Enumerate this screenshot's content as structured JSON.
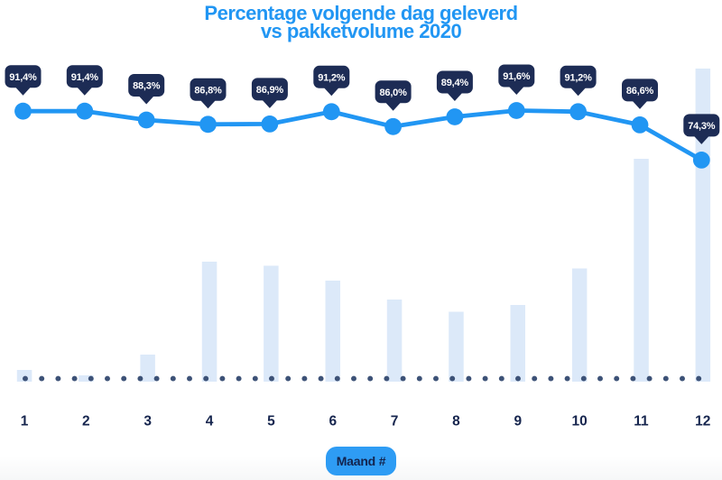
{
  "title": {
    "line1": "Percentage volgende dag geleverd",
    "line2": "vs pakketvolume 2020"
  },
  "x_axis": {
    "title": "Maand #",
    "tick_labels": [
      "1",
      "2",
      "3",
      "4",
      "5",
      "6",
      "7",
      "8",
      "9",
      "10",
      "11",
      "12"
    ]
  },
  "chart_data": {
    "type": "combo",
    "title": "Percentage volgende dag geleverd vs pakketvolume 2020",
    "xlabel": "Maand #",
    "ylabel": "",
    "legend": false,
    "grid": false,
    "categories": [
      1,
      2,
      3,
      4,
      5,
      6,
      7,
      8,
      9,
      10,
      11,
      12
    ],
    "series": [
      {
        "name": "Percentage volgende dag geleverd",
        "type": "line",
        "unit": "%",
        "values": [
          91.4,
          91.4,
          88.3,
          86.8,
          86.9,
          91.2,
          86.0,
          89.4,
          91.6,
          91.2,
          86.6,
          74.3
        ],
        "labels": [
          "91,4%",
          "91,4%",
          "88,3%",
          "86,8%",
          "86,9%",
          "91,2%",
          "86,0%",
          "89,4%",
          "91,6%",
          "91,2%",
          "86,6%",
          "74,3%"
        ]
      },
      {
        "name": "Pakketvolume",
        "type": "bar",
        "unit": "relative-height-px",
        "values": [
          13,
          7,
          30,
          133,
          128.5,
          112,
          91,
          77.5,
          85,
          125.5,
          247,
          347
        ]
      }
    ],
    "baseline": {
      "style": "dotted",
      "dot_count": 42
    }
  },
  "colors": {
    "title_text": "#2196f3",
    "line": "#2196f3",
    "marker": "#2196f3",
    "bar_fill": "#dce9f9",
    "tooltip_bg": "#1d2c55",
    "tooltip_text": "#ffffff",
    "baseline_dot": "#3d5277",
    "tick_label": "#16254e",
    "pill_bg": "#2e9cf4",
    "pill_text": "#13244e",
    "background": "#ffffff",
    "footer_fade": "#f6f7f8"
  }
}
